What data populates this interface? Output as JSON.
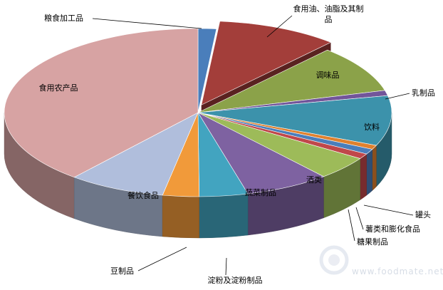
{
  "chart_data": {
    "type": "pie",
    "style": "3d-exploded-slice",
    "title": "",
    "slices": [
      {
        "label": "粮食加工品",
        "value": 1.5,
        "color": "#4A7EBB"
      },
      {
        "label": "食用油、油脂及其制品",
        "value": 10.0,
        "color": "#A33E3A"
      },
      {
        "label": "调味品",
        "value": 9.0,
        "color": "#8BA249"
      },
      {
        "label": "乳制品",
        "value": 1.0,
        "color": "#72559A"
      },
      {
        "label": "饮料",
        "value": 9.5,
        "color": "#3C92AB"
      },
      {
        "label": "罐头",
        "value": 0.8,
        "color": "#E0812E"
      },
      {
        "label": "薯类和膨化食品",
        "value": 1.0,
        "color": "#4A7EBB"
      },
      {
        "label": "糖果制品",
        "value": 1.0,
        "color": "#C0474A"
      },
      {
        "label": "酒类",
        "value": 4.5,
        "color": "#9DBB59"
      },
      {
        "label": "蔬菜制品",
        "value": 7.0,
        "color": "#7E62A1"
      },
      {
        "label": "淀粉及淀粉制品",
        "value": 4.0,
        "color": "#42A4C0"
      },
      {
        "label": "豆制品",
        "value": 3.0,
        "color": "#F19A3A"
      },
      {
        "label": "餐饮食品",
        "value": 8.0,
        "color": "#B0BEDC"
      },
      {
        "label": "食用农产品",
        "value": 38.5,
        "color": "#D7A3A3"
      }
    ]
  },
  "watermark": {
    "logo_icon": "watermark-logo-icon",
    "text": "www.foodmate.net"
  }
}
